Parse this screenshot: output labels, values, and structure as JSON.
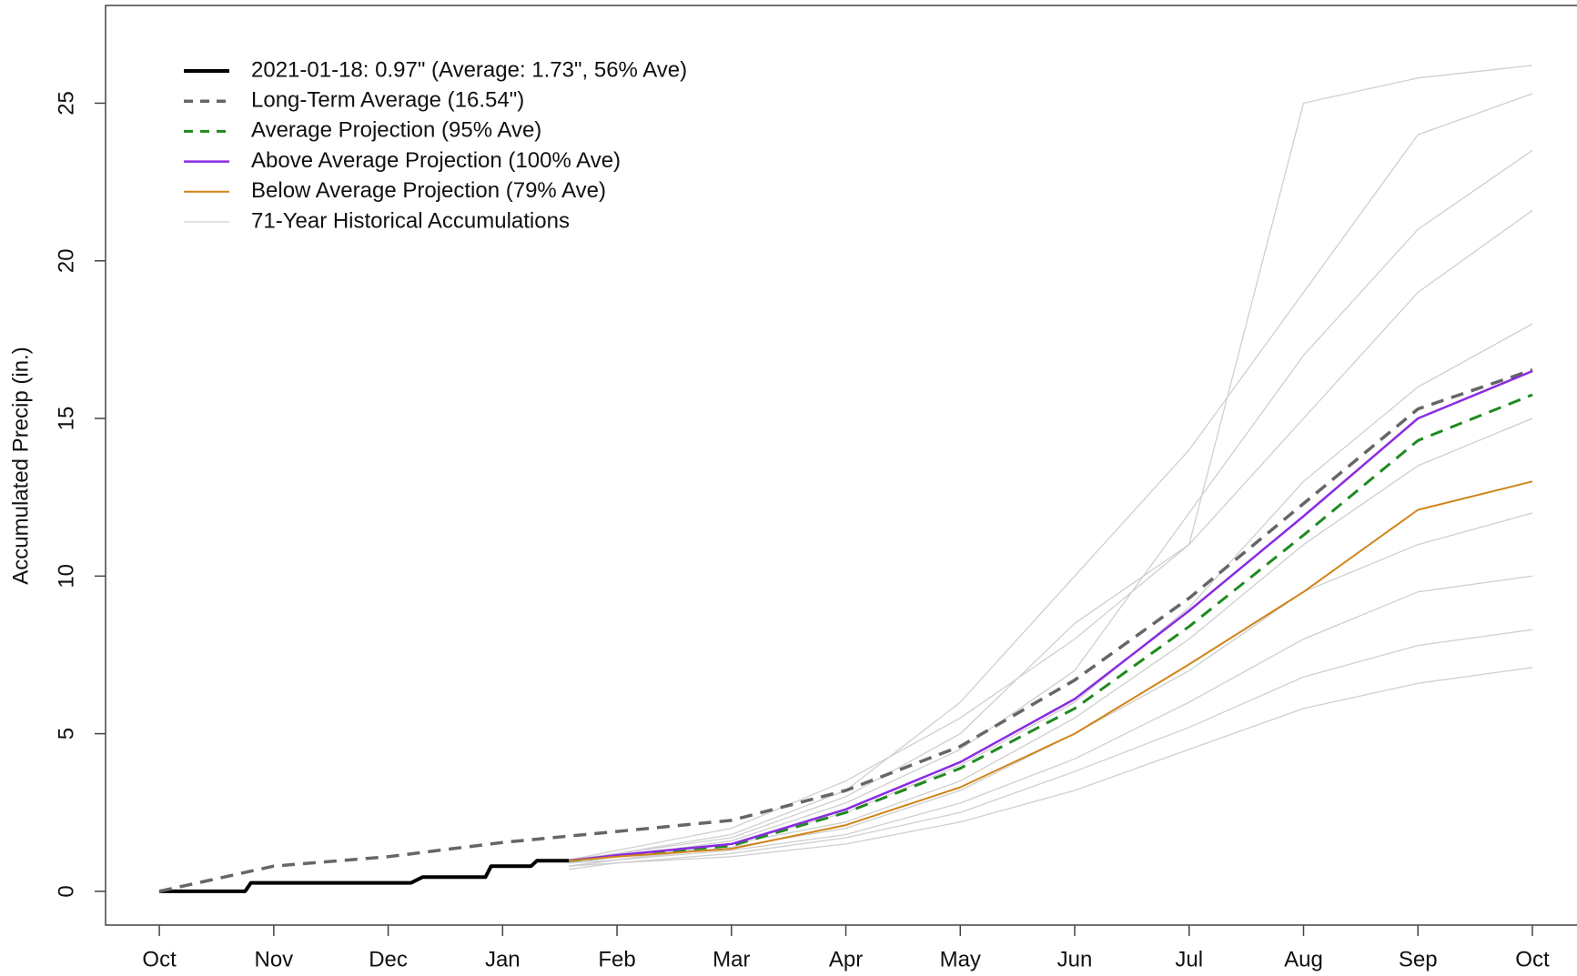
{
  "chart_data": {
    "type": "line",
    "ylabel": "Accumulated Precip (in.)",
    "xlim": [
      -0.47,
      12.39
    ],
    "ylim": [
      -1.07,
      28.1
    ],
    "xticks": [
      {
        "value": 0,
        "label": "Oct"
      },
      {
        "value": 1,
        "label": "Nov"
      },
      {
        "value": 2,
        "label": "Dec"
      },
      {
        "value": 3,
        "label": "Jan"
      },
      {
        "value": 4,
        "label": "Feb"
      },
      {
        "value": 5,
        "label": "Mar"
      },
      {
        "value": 6,
        "label": "Apr"
      },
      {
        "value": 7,
        "label": "May"
      },
      {
        "value": 8,
        "label": "Jun"
      },
      {
        "value": 9,
        "label": "Jul"
      },
      {
        "value": 10,
        "label": "Aug"
      },
      {
        "value": 11,
        "label": "Sep"
      },
      {
        "value": 12,
        "label": "Oct"
      }
    ],
    "yticks": [
      0,
      5,
      10,
      15,
      20,
      25
    ],
    "legend": "top-left",
    "historical": {
      "name": "71-Year Historical Accumulations",
      "color": "#cfcfcf",
      "width": 1.3,
      "x": [
        3.58,
        4,
        5,
        6,
        7,
        8,
        9,
        10,
        11,
        12
      ],
      "lines": [
        [
          1.0,
          1.3,
          2.0,
          3.5,
          5.5,
          8,
          11,
          25,
          25.8,
          26.2
        ],
        [
          1.0,
          1.2,
          1.8,
          3.2,
          6,
          10,
          14,
          19,
          24,
          25.3
        ],
        [
          1.0,
          1.1,
          1.6,
          2.8,
          4.5,
          7,
          12,
          17,
          21,
          23.5
        ],
        [
          0.9,
          1.2,
          1.7,
          3,
          5,
          8.5,
          11,
          15,
          19,
          21.6
        ],
        [
          0.9,
          1.0,
          1.5,
          2.5,
          4,
          6,
          9,
          13,
          16,
          18
        ],
        [
          0.9,
          1.1,
          1.5,
          2.2,
          3.5,
          5.5,
          8,
          11,
          13.5,
          15
        ],
        [
          0.8,
          1.0,
          1.4,
          2.0,
          3.2,
          5,
          7,
          9.5,
          11,
          12
        ],
        [
          0.8,
          1.0,
          1.3,
          1.8,
          2.8,
          4.2,
          6,
          8,
          9.5,
          10
        ],
        [
          0.8,
          0.9,
          1.2,
          1.7,
          2.5,
          3.8,
          5.2,
          6.8,
          7.8,
          8.3
        ],
        [
          0.7,
          0.9,
          1.1,
          1.5,
          2.2,
          3.2,
          4.5,
          5.8,
          6.6,
          7.1
        ]
      ]
    },
    "series": [
      {
        "name": "2021-01-18: 0.97\" (Average: 1.73\", 56% Ave)",
        "color": "#000000",
        "width": 4,
        "dash": false,
        "x": [
          0,
          0.75,
          0.8,
          2.2,
          2.3,
          2.85,
          2.9,
          3.25,
          3.3,
          3.58
        ],
        "values": [
          0,
          0,
          0.27,
          0.27,
          0.45,
          0.45,
          0.8,
          0.8,
          0.97,
          0.97
        ]
      },
      {
        "name": "Long-Term Average (16.54\")",
        "color": "#666666",
        "width": 3.5,
        "dash": true,
        "x": [
          0,
          1,
          2,
          3,
          4,
          5,
          6,
          7,
          8,
          9,
          10,
          11,
          12
        ],
        "values": [
          0,
          0.8,
          1.1,
          1.55,
          1.9,
          2.25,
          3.2,
          4.6,
          6.7,
          9.3,
          12.3,
          15.3,
          16.54
        ]
      },
      {
        "name": "Average Projection (95% Ave)",
        "color": "#1f8a1f",
        "width": 3,
        "dash": true,
        "x": [
          3.58,
          4,
          5,
          6,
          7,
          8,
          9,
          10,
          11,
          12
        ],
        "values": [
          0.97,
          1.12,
          1.45,
          2.5,
          3.9,
          5.8,
          8.4,
          11.3,
          14.3,
          15.75
        ]
      },
      {
        "name": "Above Average Projection (100% Ave)",
        "color": "#8a2be2",
        "width": 2.5,
        "dash": false,
        "x": [
          3.58,
          4,
          5,
          6,
          7,
          8,
          9,
          10,
          11,
          12
        ],
        "values": [
          0.97,
          1.15,
          1.5,
          2.6,
          4.1,
          6.1,
          8.9,
          11.9,
          15.0,
          16.5
        ]
      },
      {
        "name": "Below Average Projection (79% Ave)",
        "color": "#d08418",
        "width": 2,
        "dash": false,
        "x": [
          3.58,
          4,
          5,
          6,
          7,
          8,
          9,
          10,
          11,
          12
        ],
        "values": [
          0.97,
          1.1,
          1.35,
          2.1,
          3.3,
          5.0,
          7.2,
          9.5,
          12.1,
          13.0
        ]
      }
    ]
  }
}
